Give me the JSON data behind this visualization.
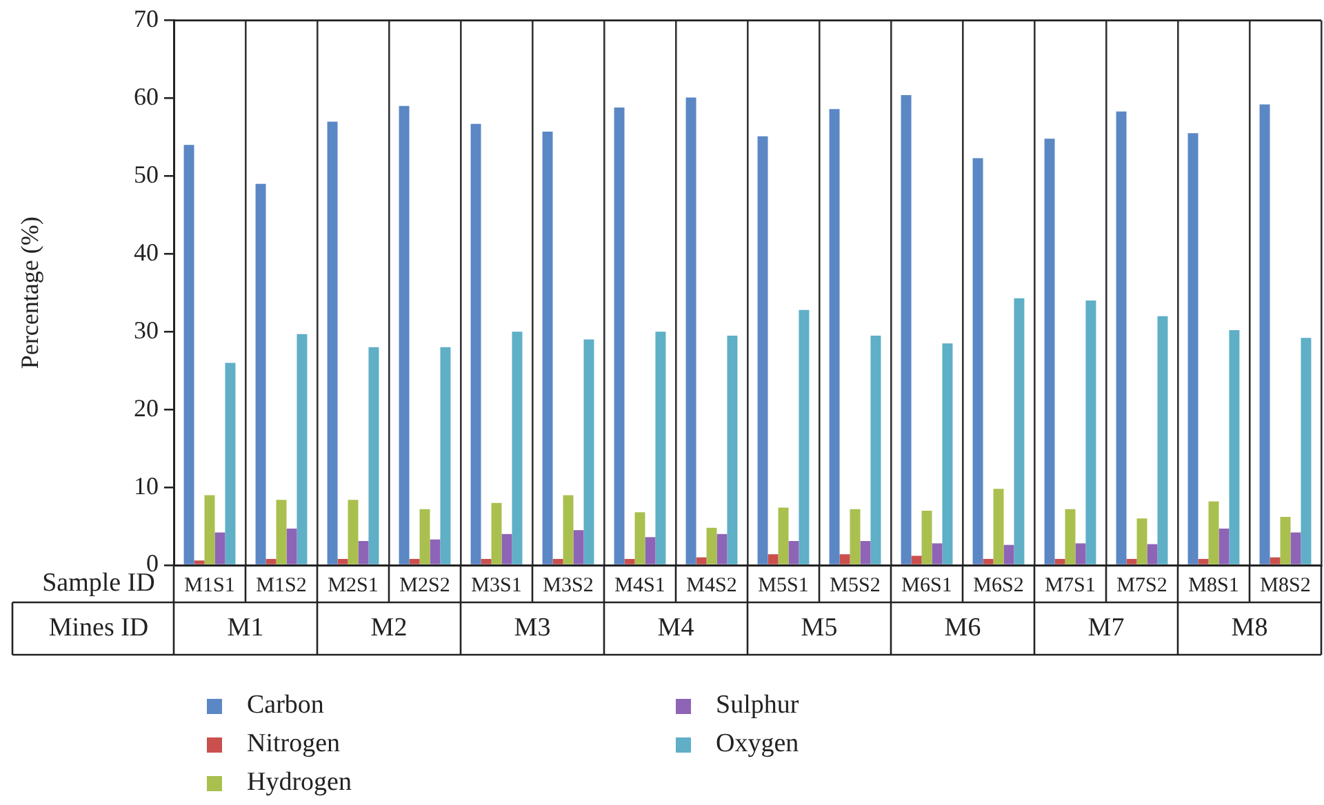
{
  "chart_data": {
    "type": "bar",
    "ylabel": "Percentage (%)",
    "xlabel": "Sample ID",
    "categories": [
      "M1S1",
      "M1S2",
      "M2S1",
      "M2S2",
      "M3S1",
      "M3S2",
      "M4S1",
      "M4S2",
      "M5S1",
      "M5S2",
      "M6S1",
      "M6S2",
      "M7S1",
      "M7S2",
      "M8S1",
      "M8S2"
    ],
    "series": [
      {
        "name": "Carbon",
        "color": "#5b87c5",
        "values": [
          54.0,
          49.0,
          57.0,
          59.0,
          56.7,
          55.7,
          58.8,
          60.1,
          55.1,
          58.6,
          60.4,
          52.3,
          54.8,
          58.3,
          55.5,
          59.2
        ]
      },
      {
        "name": "Nitrogen",
        "color": "#c9504d",
        "values": [
          0.6,
          0.8,
          0.8,
          0.8,
          0.8,
          0.8,
          0.8,
          1.0,
          1.4,
          1.4,
          1.2,
          0.8,
          0.8,
          0.8,
          0.8,
          1.0
        ]
      },
      {
        "name": "Hydrogen",
        "color": "#a9c04f",
        "values": [
          9.0,
          8.4,
          8.4,
          7.2,
          8.0,
          9.0,
          6.8,
          4.8,
          7.4,
          7.2,
          7.0,
          9.8,
          7.2,
          6.0,
          8.2,
          6.2
        ]
      },
      {
        "name": "Sulphur",
        "color": "#8e64b6",
        "values": [
          4.2,
          4.7,
          3.1,
          3.3,
          4.0,
          4.5,
          3.6,
          4.0,
          3.1,
          3.1,
          2.8,
          2.6,
          2.8,
          2.7,
          4.7,
          4.2
        ]
      },
      {
        "name": "Oxygen",
        "color": "#5fafc7",
        "values": [
          26.0,
          29.7,
          28.0,
          28.0,
          30.0,
          29.0,
          30.0,
          29.5,
          32.8,
          29.5,
          28.5,
          34.3,
          34.0,
          32.0,
          30.2,
          29.2
        ]
      }
    ],
    "annotations": [
      "Mines ID",
      "M1",
      "M2",
      "M3",
      "M4",
      "M5",
      "M6",
      "M7",
      "M8"
    ],
    "ylim": [
      0,
      70
    ],
    "yticks": [
      0,
      10,
      20,
      30,
      40,
      50,
      60,
      70
    ],
    "grid": "x",
    "legend": "bottom"
  }
}
